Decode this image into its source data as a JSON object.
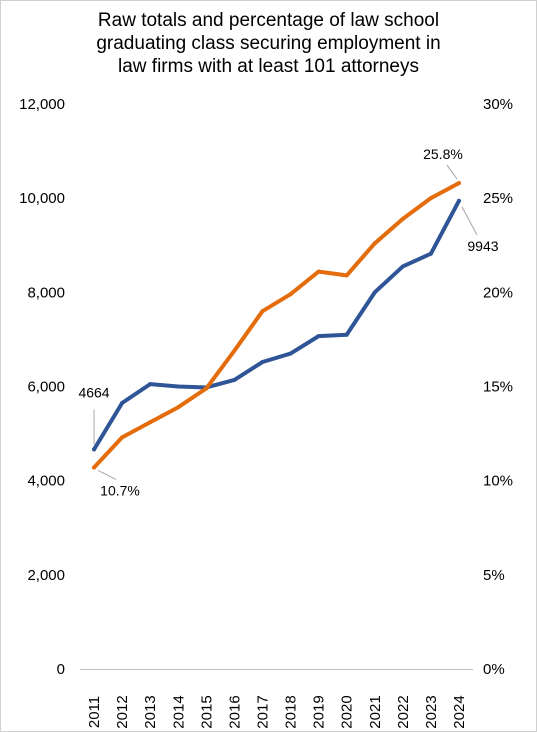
{
  "chart_data": {
    "type": "line",
    "title_lines": [
      "Raw totals and percentage of law school",
      "graduating class securing employment in",
      "law firms with at least 101 attorneys"
    ],
    "categories": [
      "2011",
      "2012",
      "2013",
      "2014",
      "2015",
      "2016",
      "2017",
      "2018",
      "2019",
      "2020",
      "2021",
      "2022",
      "2023",
      "2024"
    ],
    "y_left": {
      "min": 0,
      "max": 12000,
      "step": 2000,
      "tick_labels": [
        "0",
        "2,000",
        "4,000",
        "6,000",
        "8,000",
        "10,000",
        "12,000"
      ]
    },
    "y_right": {
      "min": 0,
      "max": 30,
      "step": 5,
      "tick_labels": [
        "0%",
        "5%",
        "10%",
        "15%",
        "20%",
        "25%",
        "30%"
      ]
    },
    "series": [
      {
        "axis": "left",
        "color": "#2f5597",
        "values": [
          4664,
          5650,
          6050,
          6000,
          5980,
          6140,
          6520,
          6700,
          7070,
          7100,
          8000,
          8550,
          8820,
          9943
        ]
      },
      {
        "axis": "right",
        "color": "#e46c0a",
        "values": [
          10.7,
          12.3,
          13.1,
          13.9,
          14.9,
          16.9,
          19.0,
          19.9,
          21.1,
          20.9,
          22.6,
          23.9,
          25.0,
          25.8
        ]
      }
    ],
    "annotations": [
      {
        "series": 0,
        "index": 0,
        "text": "4664"
      },
      {
        "series": 0,
        "index": 13,
        "text": "9943"
      },
      {
        "series": 1,
        "index": 0,
        "text": "10.7%"
      },
      {
        "series": 1,
        "index": 13,
        "text": "25.8%"
      }
    ],
    "grid": false
  }
}
